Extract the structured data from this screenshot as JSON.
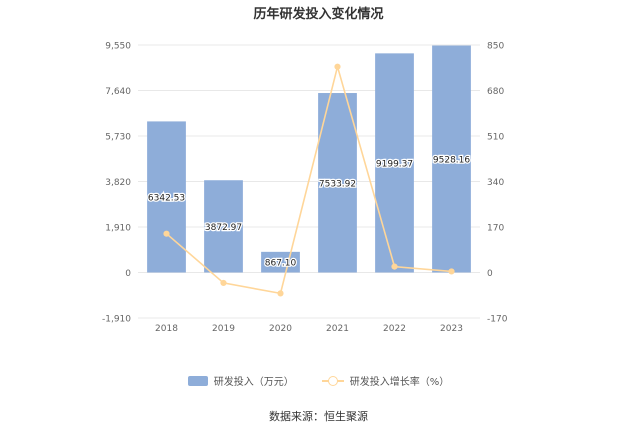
{
  "title": "历年研发投入变化情况",
  "source": "数据来源：恒生聚源",
  "colors": {
    "bar": "#8eadd9",
    "line": "#ffd699",
    "grid": "#e8e8e8",
    "axis_text": "#666666"
  },
  "chart_data": {
    "type": "bar",
    "title": "历年研发投入变化情况",
    "categories": [
      "2018",
      "2019",
      "2020",
      "2021",
      "2022",
      "2023"
    ],
    "series": [
      {
        "name": "研发投入（万元）",
        "type": "bar",
        "axis": "left",
        "values": [
          6342.53,
          3872.97,
          867.1,
          7533.92,
          9199.37,
          9528.16
        ],
        "labels": [
          "6342.53",
          "3872.97",
          "867.10",
          "7533.92",
          "9199.37",
          "9528.16"
        ]
      },
      {
        "name": "研发投入增长率（%）",
        "type": "line",
        "axis": "right",
        "values": [
          145,
          -39,
          -78,
          769,
          22,
          4
        ]
      }
    ],
    "y_left": {
      "ticks": [
        9550,
        7640,
        5730,
        3820,
        1910,
        0,
        -1910
      ],
      "tick_labels": [
        "9,550",
        "7,640",
        "5,730",
        "3,820",
        "1,910",
        "0",
        "-1,910"
      ],
      "ylim": [
        -1910,
        9550
      ]
    },
    "y_right": {
      "ticks": [
        850,
        680,
        510,
        340,
        170,
        0,
        -170
      ],
      "tick_labels": [
        "850",
        "680",
        "510",
        "340",
        "170",
        "0",
        "-170"
      ],
      "ylim": [
        -170,
        850
      ]
    },
    "grid": true,
    "legend_position": "bottom"
  }
}
